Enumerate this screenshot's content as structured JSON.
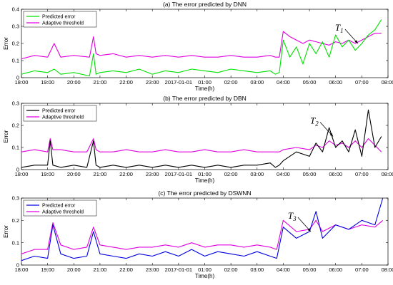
{
  "colors": {
    "threshold": "#e000e0",
    "axis": "#000000",
    "plot_bg": "#ffffff"
  },
  "chart_data": [
    {
      "type": "line",
      "title": "(a) The error predicted by DNN",
      "xlabel": "Time(h)",
      "ylabel": "Error",
      "x_tick_labels": [
        "18:00",
        "19:00",
        "20:00",
        "21:00",
        "22:00",
        "23:00",
        "2017-01-01",
        "01:00",
        "02:00",
        "03:00",
        "04:00",
        "05:00",
        "06:00",
        "07:00",
        "08:00"
      ],
      "x_range_hours": [
        0,
        14
      ],
      "ylim": [
        0,
        0.4
      ],
      "y_ticks": [
        0,
        0.1,
        0.2,
        0.3,
        0.4
      ],
      "grid": false,
      "legend_placement": "top-left",
      "annotation": {
        "letter": "T",
        "subscript": "1",
        "at_hour": 12.85,
        "at_value": 0.2
      },
      "series": [
        {
          "name": "Predicted error",
          "color": "#00e000",
          "x": [
            0,
            0.5,
            1,
            1.25,
            1.5,
            2,
            2.6,
            2.75,
            2.85,
            3,
            3.5,
            4,
            4.5,
            5,
            5.5,
            6,
            6.5,
            7,
            7.5,
            8,
            8.5,
            9,
            9.5,
            9.7,
            9.85,
            10,
            10.25,
            10.5,
            10.75,
            11,
            11.25,
            11.5,
            11.75,
            12,
            12.25,
            12.5,
            12.75,
            13,
            13.25,
            13.5,
            13.75
          ],
          "values": [
            0.02,
            0.04,
            0.03,
            0.05,
            0.02,
            0.03,
            0.01,
            0.14,
            0.02,
            0.03,
            0.04,
            0.03,
            0.05,
            0.02,
            0.04,
            0.03,
            0.05,
            0.04,
            0.03,
            0.05,
            0.04,
            0.03,
            0.04,
            0.02,
            0.03,
            0.22,
            0.12,
            0.18,
            0.08,
            0.2,
            0.14,
            0.21,
            0.12,
            0.25,
            0.18,
            0.22,
            0.16,
            0.2,
            0.25,
            0.28,
            0.34
          ]
        },
        {
          "name": "Adaptive threshold",
          "color": "#e000e0",
          "x": [
            0,
            0.5,
            1,
            1.25,
            1.5,
            2,
            2.6,
            2.75,
            2.85,
            3,
            3.5,
            4,
            4.5,
            5,
            5.5,
            6,
            6.5,
            7,
            7.5,
            8,
            8.5,
            9,
            9.5,
            9.7,
            9.85,
            10,
            10.25,
            10.5,
            10.75,
            11,
            11.25,
            11.5,
            11.75,
            12,
            12.25,
            12.5,
            12.75,
            13,
            13.25,
            13.5,
            13.75
          ],
          "values": [
            0.11,
            0.13,
            0.12,
            0.2,
            0.12,
            0.13,
            0.12,
            0.24,
            0.14,
            0.13,
            0.14,
            0.12,
            0.13,
            0.12,
            0.13,
            0.12,
            0.13,
            0.12,
            0.12,
            0.13,
            0.12,
            0.12,
            0.13,
            0.12,
            0.12,
            0.27,
            0.24,
            0.22,
            0.2,
            0.22,
            0.21,
            0.2,
            0.19,
            0.21,
            0.2,
            0.22,
            0.2,
            0.22,
            0.24,
            0.26,
            0.26
          ]
        }
      ]
    },
    {
      "type": "line",
      "title": "(b) The error predicted by DBN",
      "xlabel": "Time(h)",
      "ylabel": "Error",
      "x_tick_labels": [
        "18:00",
        "19:00",
        "20:00",
        "21:00",
        "22:00",
        "23:00",
        "2017-01-01",
        "01:00",
        "02:00",
        "03:00",
        "04:00",
        "05:00",
        "06:00",
        "07:00",
        "08:00"
      ],
      "x_range_hours": [
        0,
        14
      ],
      "ylim": [
        0,
        0.3
      ],
      "y_ticks": [
        0,
        0.1,
        0.2,
        0.3
      ],
      "grid": false,
      "legend_placement": "top-left",
      "annotation": {
        "letter": "T",
        "subscript": "2",
        "at_hour": 11.9,
        "at_value": 0.15
      },
      "series": [
        {
          "name": "Predicted error",
          "color": "#000000",
          "x": [
            0,
            0.5,
            1,
            1.1,
            1.2,
            1.5,
            2,
            2.5,
            2.75,
            2.85,
            3,
            3.5,
            4,
            4.5,
            5,
            5.5,
            6,
            6.5,
            7,
            7.5,
            8,
            8.5,
            9,
            9.5,
            9.7,
            9.85,
            10,
            10.5,
            11,
            11.25,
            11.5,
            11.75,
            12,
            12.25,
            12.5,
            12.75,
            13,
            13.25,
            13.5,
            13.75
          ],
          "values": [
            0.01,
            0.02,
            0.02,
            0.13,
            0.02,
            0.01,
            0.02,
            0.01,
            0.13,
            0.02,
            0.01,
            0.02,
            0.01,
            0.02,
            0.01,
            0.02,
            0.01,
            0.02,
            0.01,
            0.02,
            0.01,
            0.02,
            0.02,
            0.03,
            0.01,
            0.02,
            0.04,
            0.08,
            0.06,
            0.12,
            0.08,
            0.19,
            0.1,
            0.13,
            0.08,
            0.18,
            0.06,
            0.27,
            0.1,
            0.15
          ]
        },
        {
          "name": "Adaptive threshold",
          "color": "#e000e0",
          "x": [
            0,
            0.5,
            1,
            1.1,
            1.2,
            1.5,
            2,
            2.5,
            2.75,
            2.85,
            3,
            3.5,
            4,
            4.5,
            5,
            5.5,
            6,
            6.5,
            7,
            7.5,
            8,
            8.5,
            9,
            9.5,
            9.7,
            9.85,
            10,
            10.5,
            11,
            11.25,
            11.5,
            11.75,
            12,
            12.25,
            12.5,
            12.75,
            13,
            13.25,
            13.5,
            13.75
          ],
          "values": [
            0.08,
            0.09,
            0.08,
            0.14,
            0.09,
            0.09,
            0.08,
            0.08,
            0.14,
            0.09,
            0.08,
            0.08,
            0.09,
            0.08,
            0.08,
            0.09,
            0.08,
            0.08,
            0.09,
            0.08,
            0.08,
            0.09,
            0.08,
            0.08,
            0.08,
            0.08,
            0.09,
            0.1,
            0.09,
            0.11,
            0.1,
            0.13,
            0.11,
            0.12,
            0.1,
            0.13,
            0.1,
            0.14,
            0.11,
            0.08
          ]
        }
      ]
    },
    {
      "type": "line",
      "title": "(c) The error predicted by DSWNN",
      "xlabel": "Time(h)",
      "ylabel": "Error",
      "x_tick_labels": [
        "18:00",
        "19:00",
        "20:00",
        "21:00",
        "22:00",
        "23:00",
        "2017-01-01",
        "01:00",
        "02:00",
        "03:00",
        "04:00",
        "05:00",
        "06:00",
        "07:00",
        "08:00"
      ],
      "x_range_hours": [
        0,
        14
      ],
      "ylim": [
        0,
        0.3
      ],
      "y_ticks": [
        0,
        0.1,
        0.2,
        0.3
      ],
      "grid": false,
      "legend_placement": "top-left",
      "annotation": {
        "letter": "T",
        "subscript": "3",
        "at_hour": 11.05,
        "at_value": 0.15
      },
      "series": [
        {
          "name": "Predicted error",
          "color": "#0000e0",
          "x": [
            0,
            0.5,
            1,
            1.2,
            1.5,
            2,
            2.5,
            2.75,
            3,
            3.5,
            4,
            4.5,
            5,
            5.5,
            6,
            6.5,
            7,
            7.5,
            8,
            8.5,
            9,
            9.5,
            9.75,
            10,
            10.5,
            11,
            11.25,
            11.5,
            12,
            12.5,
            13,
            13.5,
            13.8
          ],
          "values": [
            0.02,
            0.04,
            0.03,
            0.18,
            0.05,
            0.03,
            0.04,
            0.15,
            0.05,
            0.04,
            0.03,
            0.05,
            0.04,
            0.06,
            0.04,
            0.07,
            0.04,
            0.06,
            0.05,
            0.04,
            0.06,
            0.04,
            0.03,
            0.17,
            0.12,
            0.15,
            0.24,
            0.12,
            0.18,
            0.16,
            0.2,
            0.18,
            0.3
          ]
        },
        {
          "name": "Adaptive threshold",
          "color": "#e000e0",
          "x": [
            0,
            0.5,
            1,
            1.2,
            1.5,
            2,
            2.5,
            2.75,
            3,
            3.5,
            4,
            4.5,
            5,
            5.5,
            6,
            6.5,
            7,
            7.5,
            8,
            8.5,
            9,
            9.5,
            9.75,
            10,
            10.5,
            11,
            11.25,
            11.5,
            12,
            12.5,
            13,
            13.5,
            13.8
          ],
          "values": [
            0.05,
            0.07,
            0.07,
            0.19,
            0.09,
            0.07,
            0.08,
            0.17,
            0.09,
            0.08,
            0.07,
            0.08,
            0.08,
            0.09,
            0.08,
            0.1,
            0.08,
            0.09,
            0.09,
            0.08,
            0.09,
            0.08,
            0.07,
            0.2,
            0.15,
            0.16,
            0.2,
            0.15,
            0.18,
            0.16,
            0.18,
            0.17,
            0.2
          ]
        }
      ]
    }
  ]
}
